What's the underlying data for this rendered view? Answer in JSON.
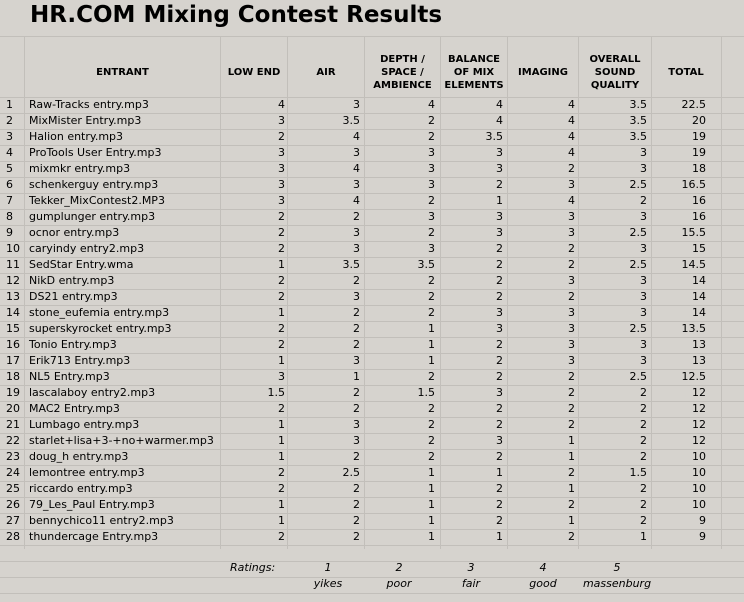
{
  "title": "HR.COM Mixing Contest Results",
  "headers": {
    "entrant": "ENTRANT",
    "low_end": "LOW END",
    "air": "AIR",
    "depth": [
      "DEPTH /",
      "SPACE /",
      "AMBIENCE"
    ],
    "balance": [
      "BALANCE",
      "OF MIX",
      "ELEMENTS"
    ],
    "imaging": "IMAGING",
    "overall": [
      "OVERALL",
      "SOUND",
      "QUALITY"
    ],
    "total": "TOTAL"
  },
  "rows": [
    [
      "1",
      "Raw-Tracks entry.mp3",
      "4",
      "3",
      "4",
      "4",
      "4",
      "3.5",
      "22.5"
    ],
    [
      "2",
      "MixMister Entry.mp3",
      "3",
      "3.5",
      "2",
      "4",
      "4",
      "3.5",
      "20"
    ],
    [
      "3",
      "Halion entry.mp3",
      "2",
      "4",
      "2",
      "3.5",
      "4",
      "3.5",
      "19"
    ],
    [
      "4",
      "ProTools User Entry.mp3",
      "3",
      "3",
      "3",
      "3",
      "4",
      "3",
      "19"
    ],
    [
      "5",
      "mixmkr entry.mp3",
      "3",
      "4",
      "3",
      "3",
      "2",
      "3",
      "18"
    ],
    [
      "6",
      "schenkerguy entry.mp3",
      "3",
      "3",
      "3",
      "2",
      "3",
      "2.5",
      "16.5"
    ],
    [
      "7",
      "Tekker_MixContest2.MP3",
      "3",
      "4",
      "2",
      "1",
      "4",
      "2",
      "16"
    ],
    [
      "8",
      "gumplunger entry.mp3",
      "2",
      "2",
      "3",
      "3",
      "3",
      "3",
      "16"
    ],
    [
      "9",
      "ocnor entry.mp3",
      "2",
      "3",
      "2",
      "3",
      "3",
      "2.5",
      "15.5"
    ],
    [
      "10",
      "caryindy entry2.mp3",
      "2",
      "3",
      "3",
      "2",
      "2",
      "3",
      "15"
    ],
    [
      "11",
      "SedStar Entry.wma",
      "1",
      "3.5",
      "3.5",
      "2",
      "2",
      "2.5",
      "14.5"
    ],
    [
      "12",
      "NikD entry.mp3",
      "2",
      "2",
      "2",
      "2",
      "3",
      "3",
      "14"
    ],
    [
      "13",
      "DS21 entry.mp3",
      "2",
      "3",
      "2",
      "2",
      "2",
      "3",
      "14"
    ],
    [
      "14",
      "stone_eufemia entry.mp3",
      "1",
      "2",
      "2",
      "3",
      "3",
      "3",
      "14"
    ],
    [
      "15",
      "superskyrocket entry.mp3",
      "2",
      "2",
      "1",
      "3",
      "3",
      "2.5",
      "13.5"
    ],
    [
      "16",
      "Tonio Entry.mp3",
      "2",
      "2",
      "1",
      "2",
      "3",
      "3",
      "13"
    ],
    [
      "17",
      "Erik713 Entry.mp3",
      "1",
      "3",
      "1",
      "2",
      "3",
      "3",
      "13"
    ],
    [
      "18",
      "NL5 Entry.mp3",
      "3",
      "1",
      "2",
      "2",
      "2",
      "2.5",
      "12.5"
    ],
    [
      "19",
      "lascalaboy entry2.mp3",
      "1.5",
      "2",
      "1.5",
      "3",
      "2",
      "2",
      "12"
    ],
    [
      "20",
      "MAC2 Entry.mp3",
      "2",
      "2",
      "2",
      "2",
      "2",
      "2",
      "12"
    ],
    [
      "21",
      "Lumbago entry.mp3",
      "1",
      "3",
      "2",
      "2",
      "2",
      "2",
      "12"
    ],
    [
      "22",
      "starlet+lisa+3-+no+warmer.mp3",
      "1",
      "3",
      "2",
      "3",
      "1",
      "2",
      "12"
    ],
    [
      "23",
      "doug_h entry.mp3",
      "1",
      "2",
      "2",
      "2",
      "1",
      "2",
      "10"
    ],
    [
      "24",
      "lemontree entry.mp3",
      "2",
      "2.5",
      "1",
      "1",
      "2",
      "1.5",
      "10"
    ],
    [
      "25",
      "riccardo entry.mp3",
      "2",
      "2",
      "1",
      "2",
      "1",
      "2",
      "10"
    ],
    [
      "26",
      "79_Les_Paul Entry.mp3",
      "1",
      "2",
      "1",
      "2",
      "2",
      "2",
      "10"
    ],
    [
      "27",
      "bennychico11 entry2.mp3",
      "1",
      "2",
      "1",
      "2",
      "1",
      "2",
      "9"
    ],
    [
      "28",
      "thundercage Entry.mp3",
      "2",
      "2",
      "1",
      "1",
      "2",
      "1",
      "9"
    ]
  ],
  "ratings": {
    "label": "Ratings:",
    "scale": [
      {
        "num": "1",
        "word": "yikes"
      },
      {
        "num": "2",
        "word": "poor"
      },
      {
        "num": "3",
        "word": "fair"
      },
      {
        "num": "4",
        "word": "good"
      },
      {
        "num": "5",
        "word": "massenburg"
      }
    ]
  }
}
